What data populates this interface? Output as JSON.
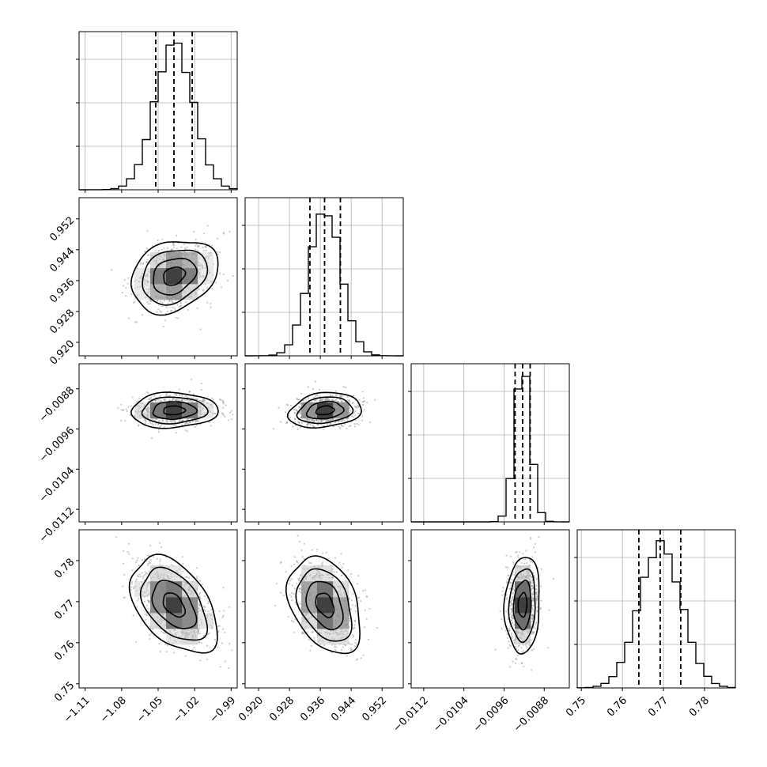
{
  "chart_data": {
    "type": "corner",
    "title": "",
    "parameters": [
      {
        "range": [
          -1.115,
          -0.985
        ],
        "ticks": [
          -1.11,
          -1.08,
          -1.05,
          -1.02,
          -0.99
        ],
        "tick_labels": [
          "−1.11",
          "−1.08",
          "−1.05",
          "−1.02",
          "−0.99"
        ],
        "quantiles": [
          -1.052,
          -1.037,
          -1.022
        ],
        "std": 0.0155,
        "mean": -1.037
      },
      {
        "range": [
          0.9165,
          0.9575
        ],
        "ticks": [
          0.92,
          0.928,
          0.936,
          0.944,
          0.952
        ],
        "tick_labels": [
          "0.920",
          "0.928",
          "0.936",
          "0.944",
          "0.952"
        ],
        "quantiles": [
          0.9333,
          0.9371,
          0.9412
        ],
        "std": 0.0041,
        "mean": 0.9372
      },
      {
        "range": [
          -0.01145,
          -0.0083
        ],
        "ticks": [
          -0.0112,
          -0.0104,
          -0.0096,
          -0.0088
        ],
        "tick_labels": [
          "−0.0112",
          "−0.0104",
          "−0.0096",
          "−0.0088"
        ],
        "quantiles": [
          -0.00938,
          -0.00923,
          -0.00908
        ],
        "std": 0.000152,
        "mean": -0.00923
      },
      {
        "range": [
          0.749,
          0.7875
        ],
        "ticks": [
          0.75,
          0.76,
          0.77,
          0.78
        ],
        "tick_labels": [
          "0.75",
          "0.76",
          "0.77",
          "0.78"
        ],
        "quantiles": [
          0.764,
          0.7692,
          0.7742
        ],
        "std": 0.0051,
        "mean": 0.7692
      }
    ],
    "correlations": [
      {
        "row": 1,
        "col": 0,
        "rho": 0.25
      },
      {
        "row": 2,
        "col": 0,
        "rho": 0.05
      },
      {
        "row": 2,
        "col": 1,
        "rho": 0.2
      },
      {
        "row": 3,
        "col": 0,
        "rho": -0.45
      },
      {
        "row": 3,
        "col": 1,
        "rho": -0.35
      },
      {
        "row": 3,
        "col": 2,
        "rho": 0.1
      }
    ],
    "contour_levels_sigma": [
      0.5,
      1.0,
      1.5,
      2.0
    ],
    "grid": true,
    "legend": "none"
  }
}
